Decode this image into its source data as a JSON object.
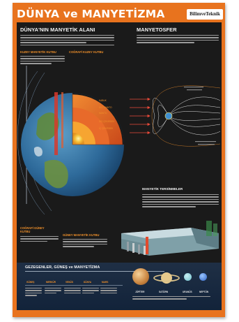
{
  "poster": {
    "title": "DÜNYA ve MANYETİZMA",
    "logo": "BilimveTeknik",
    "colors": {
      "frame": "#e8731e",
      "panel": "#1a1a1a",
      "accent": "#f0902a"
    }
  },
  "left_section": {
    "title": "DÜNYA'NIN MANYETİK ALANI",
    "label_magnetic_north": "KUZEY MANYETİK KUTBU",
    "label_geographic_north": "COĞRAFİ KUZEY KUTBU",
    "label_geographic_south": "COĞRAFİ GÜNEY KUTBU",
    "label_magnetic_south": "GÜNEY MANYETİK KUTBU",
    "layers": [
      "KABUK",
      "ÜST MANTO",
      "MANTO",
      "DIŞ ÇEKİRDEK",
      "İÇ ÇEKİRDEK"
    ]
  },
  "right_section": {
    "title": "MANYETOSFER",
    "subtitle": "MANYETİK TERSİNMELER"
  },
  "bottom_section": {
    "title": "GEZEGENLER, GÜNEŞ ve MANYETİZMA",
    "columns": [
      "GÜNEŞ",
      "MERKÜR",
      "VENÜS",
      "DÜNYA",
      "MARS"
    ],
    "planets": [
      "JÜPİTER",
      "SATÜRN",
      "URANÜS",
      "NEPTÜN"
    ]
  }
}
